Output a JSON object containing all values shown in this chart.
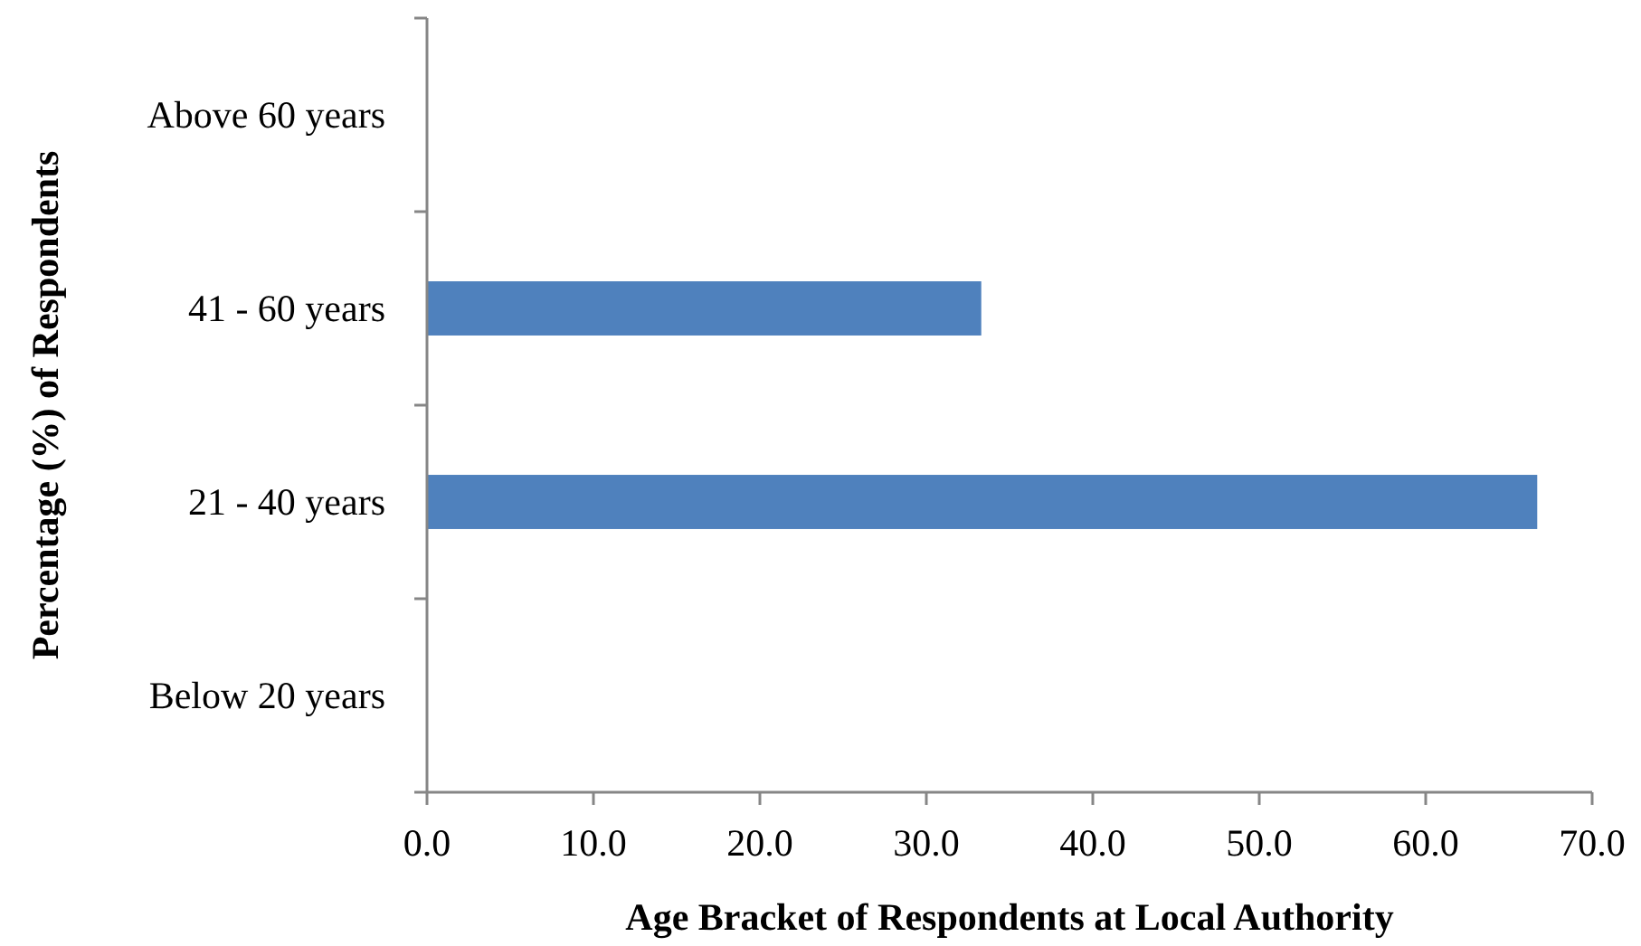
{
  "chart_data": {
    "type": "bar",
    "orientation": "horizontal",
    "xlabel": "Age Bracket of Respondents at Local Authority",
    "ylabel": "Percentage (%) of Respondents",
    "categories": [
      "Above 60 years",
      "41 - 60 years",
      "21 - 40 years",
      "Below 20 years"
    ],
    "values": [
      0,
      33.3,
      66.7,
      0
    ],
    "color": "#4f81bd",
    "xlim": [
      0,
      70
    ],
    "xticks": [
      {
        "value": 0,
        "label": "0.0"
      },
      {
        "value": 10,
        "label": "10.0"
      },
      {
        "value": 20,
        "label": "20.0"
      },
      {
        "value": 30,
        "label": "30.0"
      },
      {
        "value": 40,
        "label": "40.0"
      },
      {
        "value": 50,
        "label": "50.0"
      },
      {
        "value": 60,
        "label": "60.0"
      },
      {
        "value": 70,
        "label": "70.0"
      }
    ],
    "grid": false
  }
}
